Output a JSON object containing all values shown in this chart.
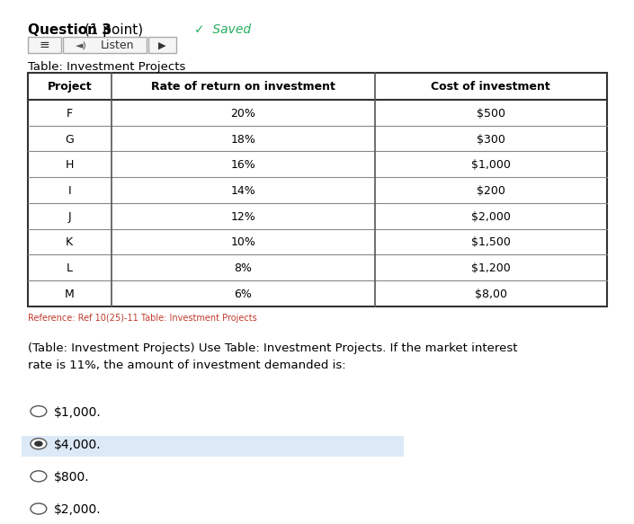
{
  "title_question": "Question 3",
  "title_question_suffix": " (1 point)",
  "saved_text": "✓  Saved",
  "table_title": "Table: Investment Projects",
  "headers": [
    "Project",
    "Rate of return on investment",
    "Cost of investment"
  ],
  "rows": [
    [
      "F",
      "20%",
      "$500"
    ],
    [
      "G",
      "18%",
      "$300"
    ],
    [
      "H",
      "16%",
      "$1,000"
    ],
    [
      "I",
      "14%",
      "$200"
    ],
    [
      "J",
      "12%",
      "$2,000"
    ],
    [
      "K",
      "10%",
      "$1,500"
    ],
    [
      "L",
      "8%",
      "$1,200"
    ],
    [
      "M",
      "6%",
      "$8,00"
    ]
  ],
  "reference_text": "Reference: Ref 10(25)-11 Table: Investment Projects",
  "question_text": "(Table: Investment Projects) Use Table: Investment Projects. If the market interest\nrate is 11%, the amount of investment demanded is:",
  "options": [
    "$1,000.",
    "$4,000.",
    "$800.",
    "$2,000."
  ],
  "selected_option": 1,
  "bg_color": "#ffffff",
  "table_header_bg": "#ffffff",
  "selected_option_bg": "#dce9f7",
  "reference_color": "#c0392b",
  "question_bold_color": "#000000",
  "header_font_weight": "bold",
  "listen_btn_color": "#555555",
  "border_color": "#555555"
}
